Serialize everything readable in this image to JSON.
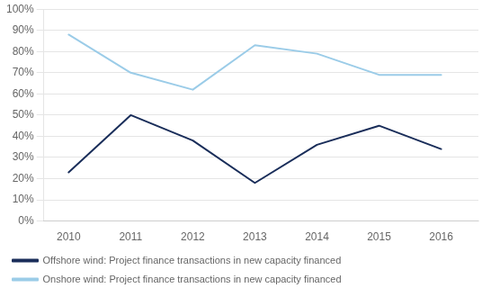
{
  "chart_data": {
    "type": "line",
    "x": [
      2010,
      2011,
      2012,
      2013,
      2014,
      2015,
      2016
    ],
    "series": [
      {
        "name": "Offshore wind: Project finance transactions in new capacity financed",
        "color": "#1a2e5a",
        "values": [
          0.23,
          0.5,
          0.38,
          0.18,
          0.36,
          0.45,
          0.34
        ]
      },
      {
        "name": "Onshore wind: Project finance transactions in new capacity financed",
        "color": "#9bcce8",
        "values": [
          0.88,
          0.7,
          0.62,
          0.83,
          0.79,
          0.69,
          0.69
        ]
      }
    ],
    "xlim": [
      2009.6,
      2016.6
    ],
    "xticks": [
      2010,
      2011,
      2012,
      2013,
      2014,
      2015,
      2016
    ],
    "ylim": [
      0,
      1.0
    ],
    "yticks": [
      {
        "value": 0,
        "label": "0%"
      },
      {
        "value": 0.1,
        "label": "10%"
      },
      {
        "value": 0.2,
        "label": "20%"
      },
      {
        "value": 0.3,
        "label": "30%"
      },
      {
        "value": 0.4,
        "label": "40%"
      },
      {
        "value": 0.5,
        "label": "50%"
      },
      {
        "value": 0.6,
        "label": "60%"
      },
      {
        "value": 0.7,
        "label": "70%"
      },
      {
        "value": 0.8,
        "label": "80%"
      },
      {
        "value": 0.9,
        "label": "90%"
      },
      {
        "value": 1.0,
        "label": "100%"
      }
    ],
    "grid": "y",
    "legend": "bottom"
  }
}
